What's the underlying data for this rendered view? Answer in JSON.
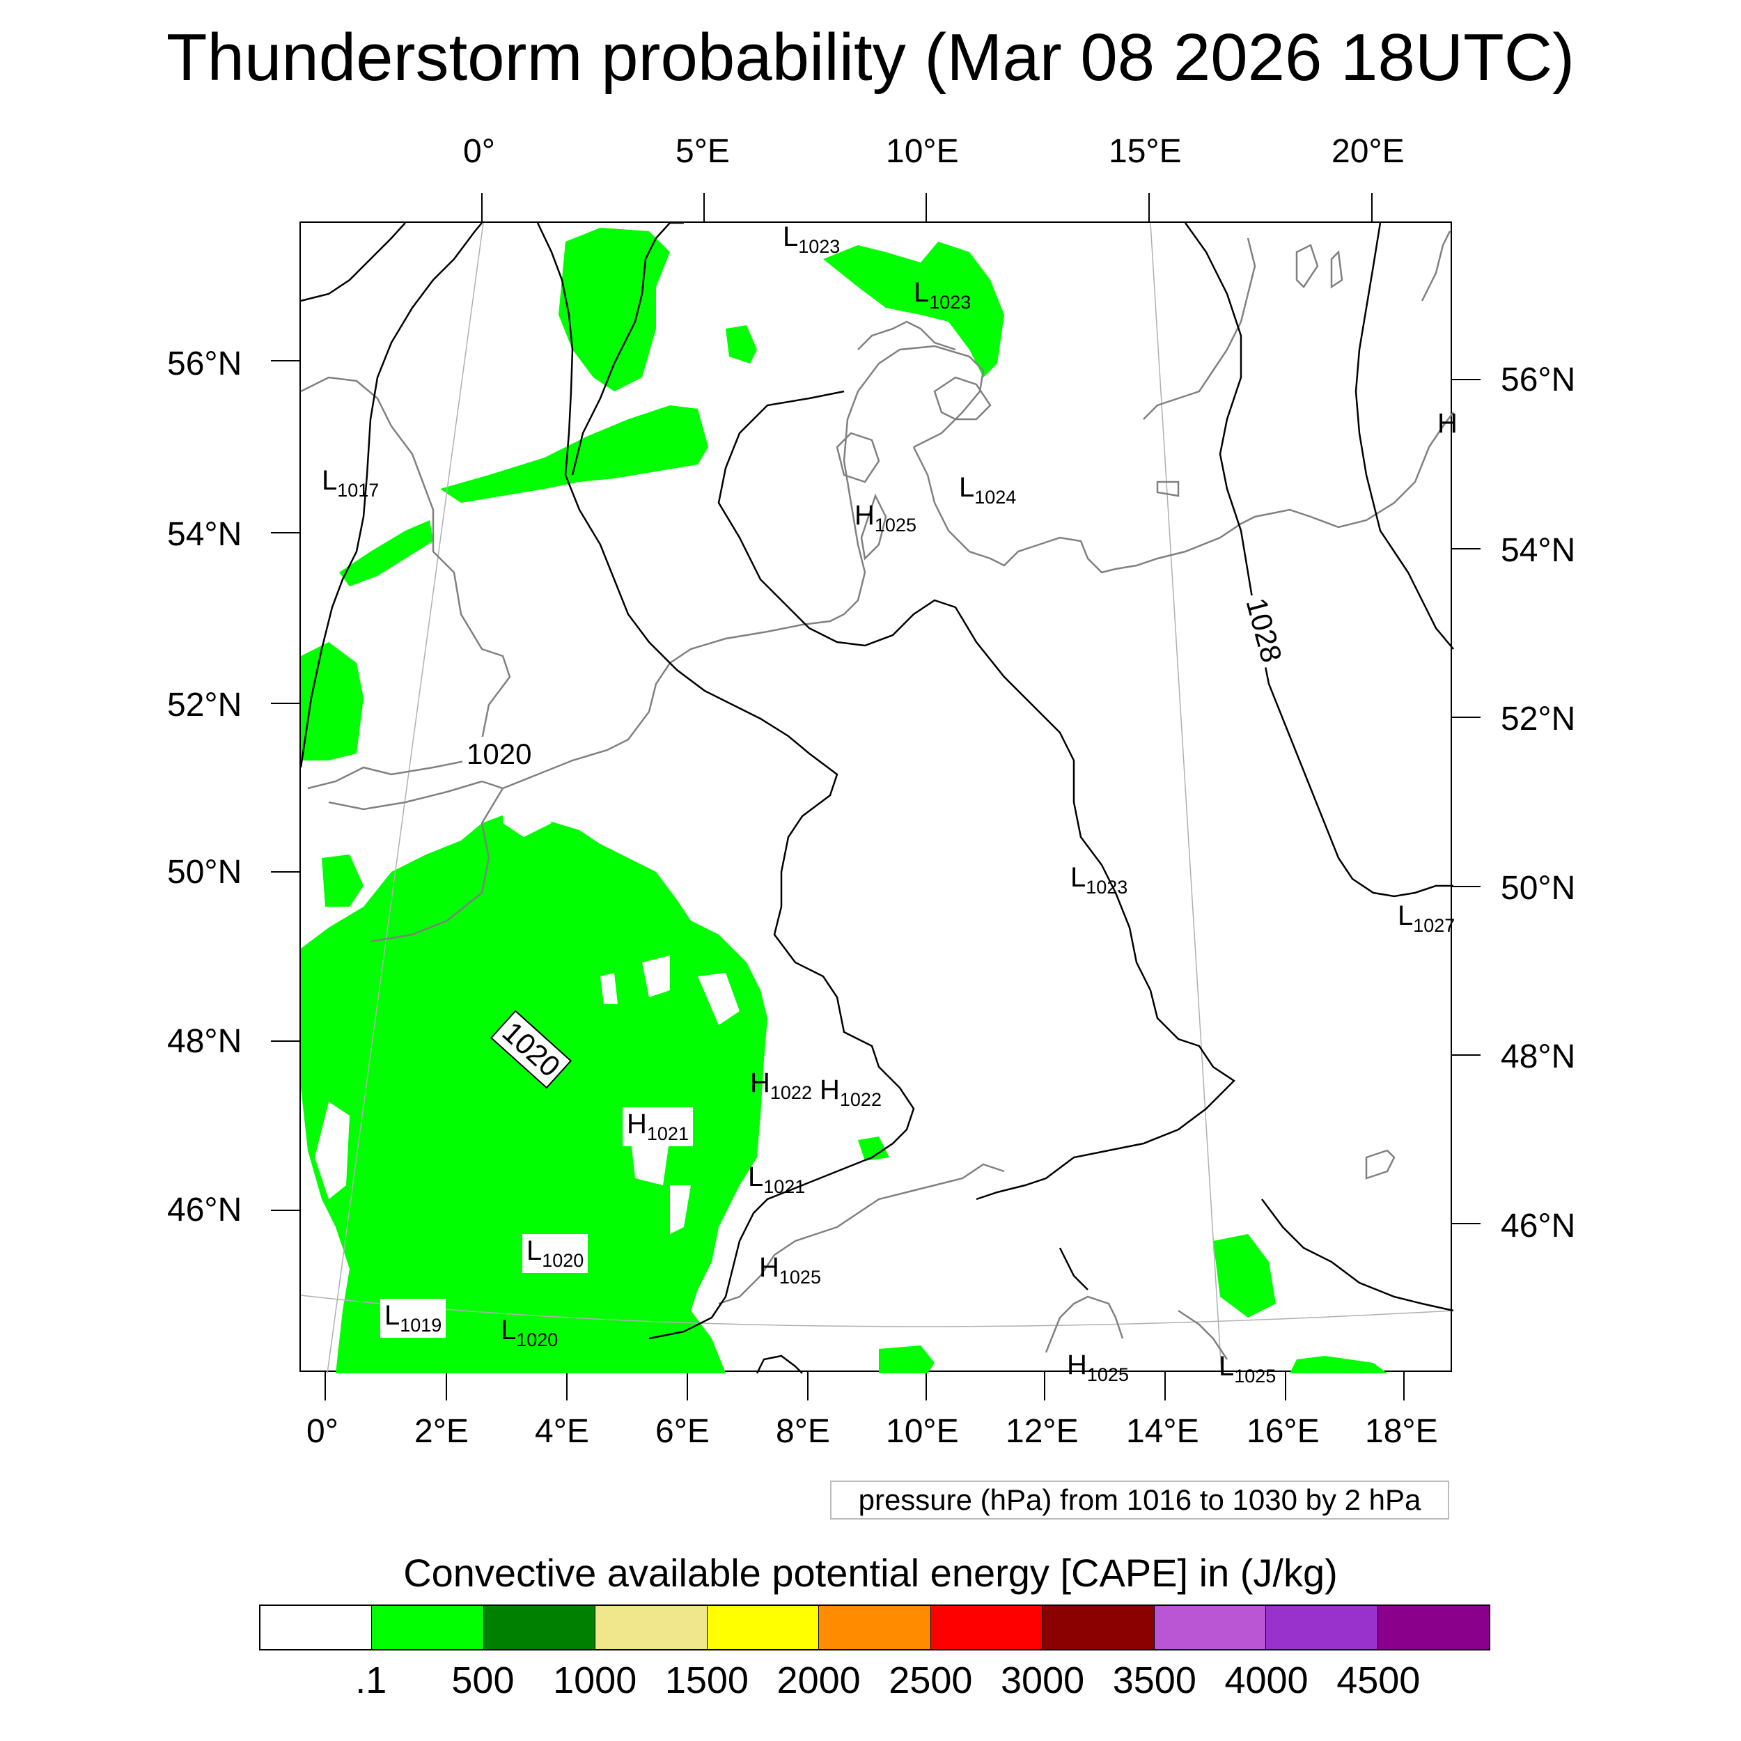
{
  "title": "Thunderstorm probability (Mar 08 2026 18UTC)",
  "map": {
    "top_lon_labels": [
      "0°",
      "5°E",
      "10°E",
      "15°E",
      "20°E"
    ],
    "bottom_lon_labels": [
      "0°",
      "2°E",
      "4°E",
      "6°E",
      "8°E",
      "10°E",
      "12°E",
      "14°E",
      "16°E",
      "18°E"
    ],
    "left_lat_labels": [
      "56°N",
      "54°N",
      "52°N",
      "50°N",
      "48°N",
      "46°N"
    ],
    "right_lat_labels": [
      "56°N",
      "54°N",
      "52°N",
      "50°N",
      "48°N",
      "46°N"
    ],
    "contour_labels": [
      "1020",
      "1020",
      "1028"
    ],
    "pressure_centers": [
      {
        "letter": "L",
        "value": "1017"
      },
      {
        "letter": "L",
        "value": "1023"
      },
      {
        "letter": "L",
        "value": "1023"
      },
      {
        "letter": "L",
        "value": "1024"
      },
      {
        "letter": "H",
        "value": "1025"
      },
      {
        "letter": "L",
        "value": "1023"
      },
      {
        "letter": "L",
        "value": "1027"
      },
      {
        "letter": "H",
        "value": "1022"
      },
      {
        "letter": "H",
        "value": "1022"
      },
      {
        "letter": "H",
        "value": "1021"
      },
      {
        "letter": "L",
        "value": "1021"
      },
      {
        "letter": "L",
        "value": "1020"
      },
      {
        "letter": "H",
        "value": "1025"
      },
      {
        "letter": "L",
        "value": "1019"
      },
      {
        "letter": "L",
        "value": "1020"
      },
      {
        "letter": "H",
        "value": "1025"
      },
      {
        "letter": "L",
        "value": "1025"
      },
      {
        "letter": "H",
        "value": ""
      }
    ],
    "cape_color": "#00ff00",
    "contour_color": "#000000",
    "coast_color": "#808080"
  },
  "pressure_note": "pressure (hPa) from 1016 to 1030 by 2 hPa",
  "colorbar": {
    "title": "Convective available potential energy [CAPE] in (J/kg)",
    "colors": [
      "#ffffff",
      "#00ff00",
      "#008000",
      "#f0e68c",
      "#ffff00",
      "#ff8c00",
      "#ff0000",
      "#8b0000",
      "#ba55d3",
      "#9932cc",
      "#8b008b"
    ],
    "labels": [
      ".1",
      "500",
      "1000",
      "1500",
      "2000",
      "2500",
      "3000",
      "3500",
      "4000",
      "4500"
    ]
  }
}
